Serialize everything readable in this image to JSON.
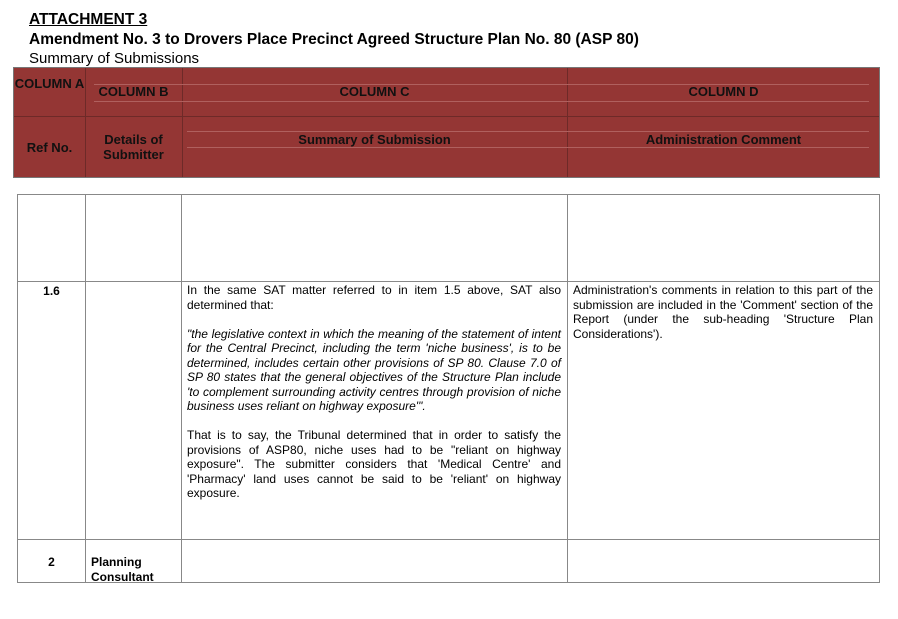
{
  "heading": {
    "attachment": "ATTACHMENT 3",
    "title": "Amendment No. 3 to Drovers Place Precinct Agreed Structure Plan No. 80 (ASP 80)",
    "subtitle": "Summary of Submissions"
  },
  "header_color": "#943634",
  "columns": [
    {
      "column": "COLUMN A",
      "label": "Ref No."
    },
    {
      "column": "COLUMN B",
      "label": "Details of Submitter"
    },
    {
      "column": "COLUMN C",
      "label": "Summary of Submission"
    },
    {
      "column": "COLUMN D",
      "label": "Administration Comment"
    }
  ],
  "rows": [
    {
      "ref": "",
      "submitter": "",
      "summary": [],
      "comment": ""
    },
    {
      "ref": "1.6",
      "submitter": "",
      "summary": [
        "In the same SAT matter referred to in item 1.5 above, SAT also determined that:",
        "\"the legislative context in which the meaning of the statement of intent  for the Central Precinct, including the term 'niche business', is to be determined, includes certain other provisions of SP 80. Clause 7.0 of SP 80 states that the general objectives of the Structure Plan include 'to complement surrounding activity centres through provision of niche business uses reliant on highway exposure'\".",
        "That is to say, the Tribunal determined that in order to satisfy the provisions of ASP80, niche uses had to be \"reliant on highway exposure\". The submitter considers that 'Medical Centre' and 'Pharmacy' land uses cannot be said to be 'reliant' on highway exposure."
      ],
      "comment": "Administration's comments in relation to this part of the submission are included in the 'Comment' section of the Report (under the sub-heading 'Structure Plan Considerations')."
    },
    {
      "ref": "2",
      "submitter": "Planning Consultant",
      "summary": [],
      "comment": ""
    }
  ]
}
